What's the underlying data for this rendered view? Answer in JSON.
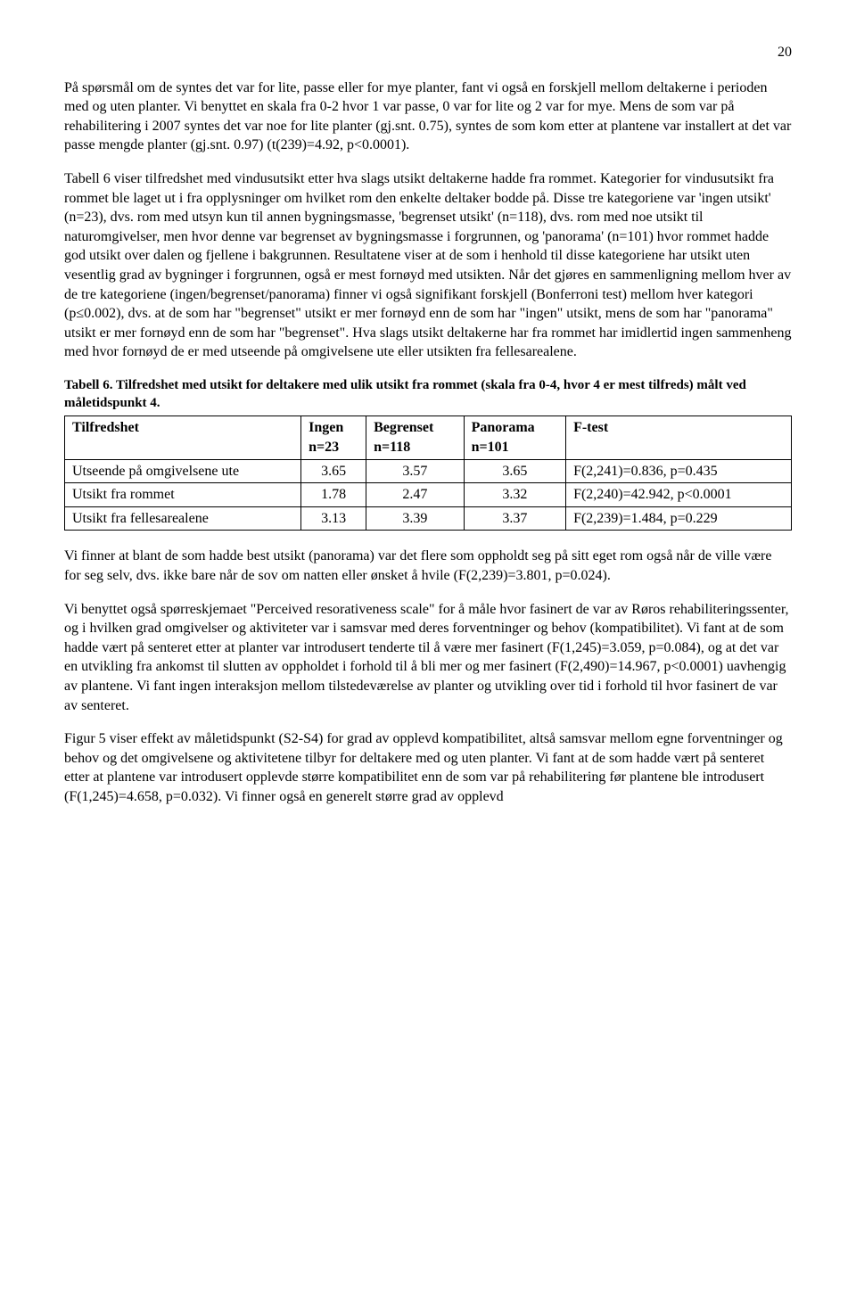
{
  "page_number": "20",
  "para1": "På spørsmål om de syntes det var for lite, passe eller for mye planter, fant vi også en forskjell mellom deltakerne i perioden med og uten planter. Vi benyttet en skala fra 0-2 hvor 1 var passe, 0 var for lite og 2 var for mye. Mens de som var på rehabilitering i 2007 syntes det var noe for lite planter (gj.snt. 0.75), syntes de som kom etter at plantene var installert at det var passe mengde planter (gj.snt. 0.97) (t(239)=4.92, p<0.0001).",
  "para2": "Tabell 6 viser tilfredshet med vindusutsikt etter hva slags utsikt deltakerne hadde fra rommet. Kategorier for vindusutsikt fra rommet ble laget ut i fra opplysninger om hvilket rom den enkelte deltaker bodde på. Disse tre kategoriene var 'ingen utsikt' (n=23), dvs. rom med utsyn kun til annen bygningsmasse, 'begrenset utsikt' (n=118), dvs. rom med noe utsikt til naturomgivelser, men hvor denne var begrenset av bygningsmasse i forgrunnen, og 'panorama' (n=101) hvor rommet hadde god utsikt over dalen og fjellene i bakgrunnen. Resultatene viser at de som i henhold til disse kategoriene har utsikt uten vesentlig grad av bygninger i forgrunnen, også er mest fornøyd med utsikten. Når det gjøres en sammenligning mellom hver av de tre kategoriene (ingen/begrenset/panorama) finner vi også signifikant forskjell (Bonferroni test) mellom hver kategori (p≤0.002), dvs. at de som har \"begrenset\" utsikt er mer fornøyd enn de som har \"ingen\" utsikt, mens de som har \"panorama\" utsikt er mer fornøyd enn de som har \"begrenset\". Hva slags utsikt deltakerne har fra rommet har imidlertid ingen sammenheng med hvor fornøyd de er med utseende på omgivelsene ute eller utsikten fra fellesarealene.",
  "table6": {
    "caption": "Tabell 6. Tilfredshet med utsikt for deltakere med ulik utsikt fra rommet (skala fra 0-4, hvor 4 er mest tilfreds) målt ved måletidspunkt 4.",
    "headers": {
      "c0": "Tilfredshet",
      "c1a": "Ingen",
      "c1b": "n=23",
      "c2a": "Begrenset",
      "c2b": "n=118",
      "c3a": "Panorama",
      "c3b": "n=101",
      "c4": "F-test"
    },
    "rows": [
      {
        "label": "Utseende på omgivelsene ute",
        "v1": "3.65",
        "v2": "3.57",
        "v3": "3.65",
        "f": "F(2,241)=0.836, p=0.435"
      },
      {
        "label": "Utsikt fra rommet",
        "v1": "1.78",
        "v2": "2.47",
        "v3": "3.32",
        "f": "F(2,240)=42.942, p<0.0001"
      },
      {
        "label": "Utsikt fra fellesarealene",
        "v1": "3.13",
        "v2": "3.39",
        "v3": "3.37",
        "f": "F(2,239)=1.484, p=0.229"
      }
    ]
  },
  "para3": "Vi finner at blant de som hadde best utsikt (panorama) var det flere som oppholdt seg på sitt eget rom også når de ville være for seg selv, dvs. ikke bare når de sov om natten eller ønsket å hvile (F(2,239)=3.801, p=0.024).",
  "para4": "Vi benyttet også spørreskjemaet \"Perceived resorativeness scale\" for å måle hvor fasinert de var av Røros rehabiliteringssenter, og i hvilken grad omgivelser og aktiviteter var i samsvar med deres forventninger og behov (kompatibilitet). Vi fant at de som hadde vært på senteret etter at planter var introdusert tenderte til å være mer fasinert (F(1,245)=3.059, p=0.084), og at det var en utvikling fra ankomst til slutten av oppholdet i forhold til å bli mer og mer fasinert (F(2,490)=14.967, p<0.0001) uavhengig av plantene. Vi fant ingen interaksjon mellom tilstedeværelse av planter og utvikling over tid i forhold til hvor fasinert de var av senteret.",
  "para5": "Figur 5 viser effekt av måletidspunkt (S2-S4) for grad av opplevd kompatibilitet, altså samsvar mellom egne forventninger og behov og det omgivelsene og aktivitetene tilbyr for deltakere med og uten planter. Vi fant at de som hadde vært på senteret etter at plantene var introdusert opplevde større kompatibilitet enn de som var på rehabilitering før plantene ble introdusert (F(1,245)=4.658, p=0.032). Vi finner også en generelt større grad av opplevd"
}
